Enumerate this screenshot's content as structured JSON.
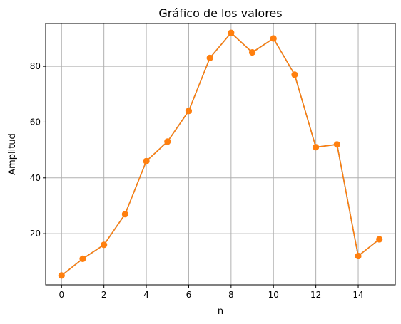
{
  "chart_data": {
    "type": "line",
    "title": "Gráfico de los valores",
    "xlabel": "n",
    "ylabel": "Amplitud",
    "grid": true,
    "xlim": [
      -0.75,
      15.75
    ],
    "ylim": [
      1.65,
      95.35
    ],
    "x_ticks": [
      0,
      2,
      4,
      6,
      8,
      10,
      12,
      14
    ],
    "y_ticks": [
      20,
      40,
      60,
      80
    ],
    "series": [
      {
        "color": "#1f77b4",
        "marker": "none",
        "x": [
          0,
          1,
          2,
          3,
          4,
          5,
          6,
          7,
          8,
          9,
          10,
          11,
          12,
          13,
          14,
          15
        ],
        "y": [
          5,
          11,
          16,
          27,
          46,
          53,
          64,
          83,
          92,
          85,
          90,
          77,
          51,
          52,
          12,
          18
        ]
      },
      {
        "color": "#ff7f0e",
        "marker": "circle",
        "x": [
          0,
          1,
          2,
          3,
          4,
          5,
          6,
          7,
          8,
          9,
          10,
          11,
          12,
          13,
          14,
          15
        ],
        "y": [
          5,
          11,
          16,
          27,
          46,
          53,
          64,
          83,
          92,
          85,
          90,
          77,
          51,
          52,
          12,
          18
        ]
      }
    ]
  }
}
